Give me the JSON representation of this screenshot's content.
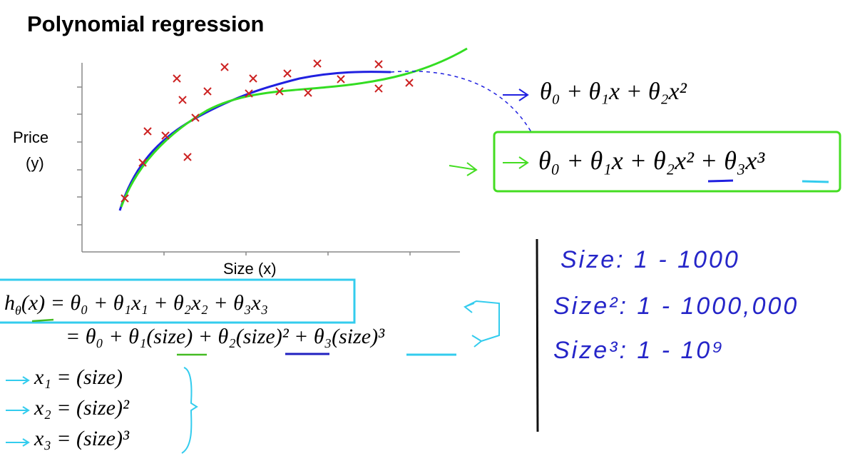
{
  "header": {
    "title": "Polynomial regression"
  },
  "plot": {
    "y_label": [
      "Price",
      "(y)"
    ],
    "x_label": "Size (x)"
  },
  "hypotheses": [
    "θ₀ + θ₁x + θ₂x²",
    "θ₀ + θ₁x + θ₂x² + θ₃x³"
  ],
  "equations": [
    {
      "lhs": "h",
      "lhs_sub": "θ",
      "rhs": "(x) = θ₀ + θ₁x₁ + θ₂x₂ + θ₃x₃"
    },
    {
      "rhs": "= θ₀ + θ₁(size) + θ₂(size)² + θ₃(size)³"
    }
  ],
  "features": [
    "x₁ = (size)",
    "x₂ = (size)²",
    "x₃ = (size)³"
  ],
  "notes": [
    "Size:  1 - 1000",
    "Size²:  1 - 1000,000",
    "Size³:  1 - 10⁹"
  ]
}
